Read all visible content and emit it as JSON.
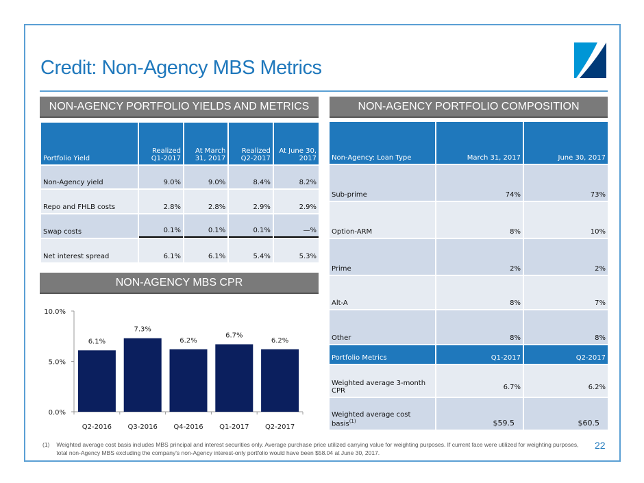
{
  "title": "Credit: Non-Agency MBS Metrics",
  "page_number": "22",
  "left_banner": "NON-AGENCY PORTFOLIO YIELDS AND METRICS",
  "right_banner": "NON-AGENCY PORTFOLIO COMPOSITION",
  "cpr_banner": "NON-AGENCY MBS CPR",
  "yields_table": {
    "headers": [
      "Portfolio Yield",
      "Realized Q1-2017",
      "At March 31, 2017",
      "Realized Q2-2017",
      "At June 30, 2017"
    ],
    "rows": [
      {
        "label": "Non-Agency yield",
        "values": [
          "9.0%",
          "9.0%",
          "8.4%",
          "8.2%"
        ]
      },
      {
        "label": "Repo and FHLB costs",
        "values": [
          "2.8%",
          "2.8%",
          "2.9%",
          "2.9%"
        ]
      },
      {
        "label": "Swap costs",
        "values": [
          "0.1%",
          "0.1%",
          "0.1%",
          "—%"
        ]
      },
      {
        "label": "Net interest spread",
        "values": [
          "6.1%",
          "6.1%",
          "5.4%",
          "5.3%"
        ]
      }
    ]
  },
  "composition_table": {
    "headers": [
      "Non-Agency: Loan Type",
      "March 31, 2017",
      "June 30, 2017"
    ],
    "rows": [
      {
        "label": "Sub-prime",
        "values": [
          "74%",
          "73%"
        ]
      },
      {
        "label": "Option-ARM",
        "values": [
          "8%",
          "10%"
        ]
      },
      {
        "label": "Prime",
        "values": [
          "2%",
          "2%"
        ]
      },
      {
        "label": "Alt-A",
        "values": [
          "8%",
          "7%"
        ]
      },
      {
        "label": "Other",
        "values": [
          "8%",
          "8%"
        ]
      }
    ],
    "metrics_headers": [
      "Portfolio Metrics",
      "Q1-2017",
      "Q2-2017"
    ],
    "metrics_rows": [
      {
        "label": "Weighted average 3-month CPR",
        "values": [
          "6.7%",
          "6.2%"
        ]
      },
      {
        "label": "Weighted average cost basis",
        "sup": "(1)",
        "values": [
          "$59.5",
          "$60.5"
        ]
      }
    ]
  },
  "chart_data": {
    "type": "bar",
    "title": "NON-AGENCY MBS CPR",
    "categories": [
      "Q2-2016",
      "Q3-2016",
      "Q4-2016",
      "Q1-2017",
      "Q2-2017"
    ],
    "values": [
      6.1,
      7.3,
      6.2,
      6.7,
      6.2
    ],
    "data_labels": [
      "6.1%",
      "7.3%",
      "6.2%",
      "6.7%",
      "6.2%"
    ],
    "yticks": [
      "0.0%",
      "5.0%",
      "10.0%"
    ],
    "ytick_values": [
      0,
      5,
      10
    ],
    "ylim": [
      0,
      10
    ],
    "bar_color": "#0b1f5e"
  },
  "footnote": {
    "marker": "(1)",
    "text": "Weighted average cost basis includes MBS principal and interest securities only.  Average purchase price utilized carrying value for weighting purposes.  If current face were utilized for weighting purposes, total non-Agency MBS excluding the company's non-Agency interest-only portfolio would have been $58.04 at June 30, 2017."
  }
}
